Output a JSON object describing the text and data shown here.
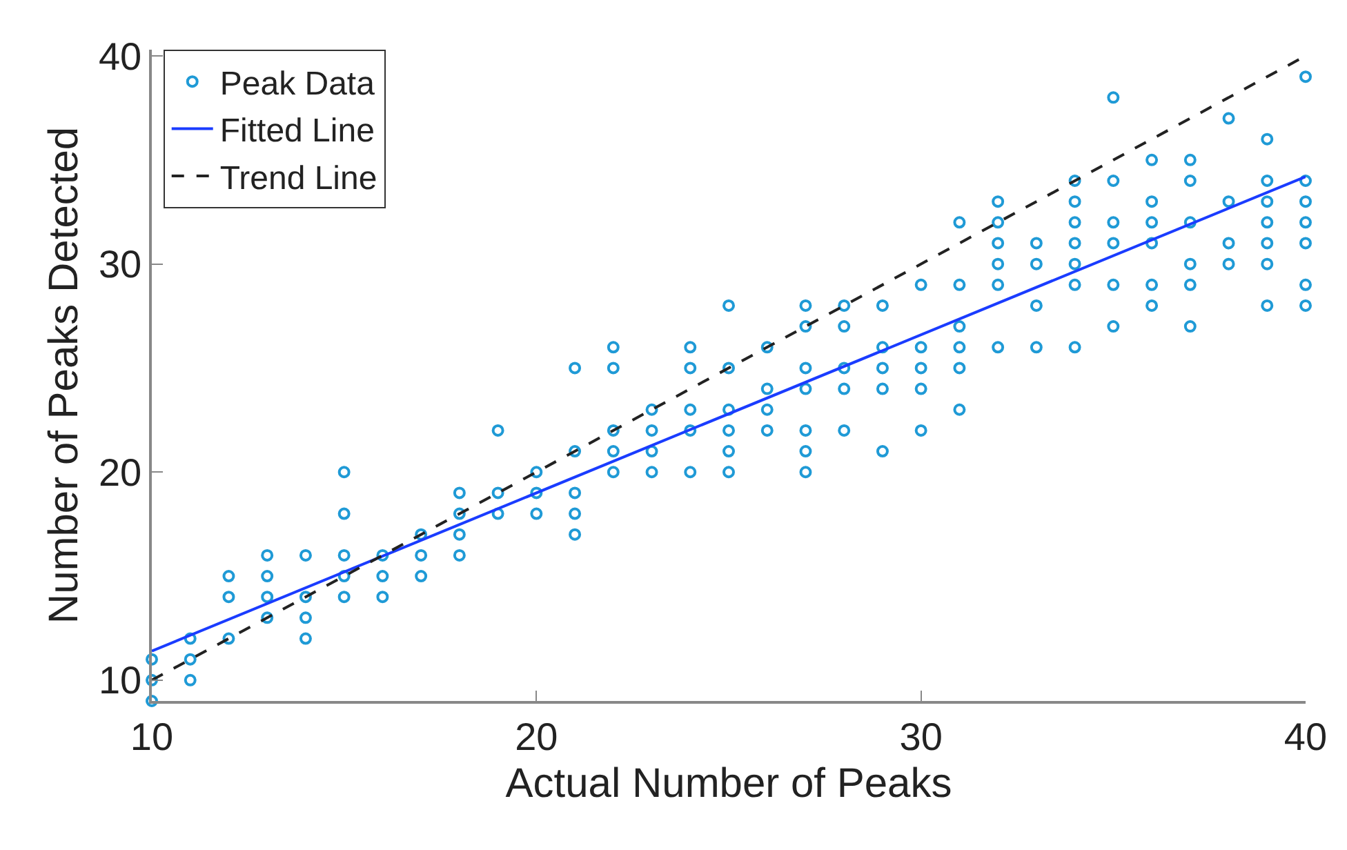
{
  "chart_data": {
    "type": "scatter",
    "xlabel": "Actual Number of Peaks",
    "ylabel": "Number of Peaks Detected",
    "xlim": [
      10,
      40
    ],
    "ylim": [
      9,
      40.3
    ],
    "xticks": [
      10,
      20,
      30,
      40
    ],
    "yticks": [
      10,
      20,
      30,
      40
    ],
    "grid": false,
    "legend": "top left",
    "series": [
      {
        "name": "Peak Data",
        "marker": "circle",
        "color": "#1f9ad6",
        "x": [
          10,
          10,
          10,
          11,
          11,
          11,
          12,
          12,
          12,
          13,
          13,
          13,
          13,
          14,
          14,
          14,
          14,
          15,
          15,
          15,
          15,
          15,
          16,
          16,
          16,
          17,
          17,
          17,
          18,
          18,
          18,
          18,
          19,
          19,
          19,
          20,
          20,
          20,
          21,
          21,
          21,
          21,
          21,
          22,
          22,
          22,
          22,
          22,
          23,
          23,
          23,
          23,
          24,
          24,
          24,
          24,
          24,
          25,
          25,
          25,
          25,
          25,
          25,
          26,
          26,
          26,
          26,
          27,
          27,
          27,
          27,
          27,
          27,
          27,
          28,
          28,
          28,
          28,
          28,
          29,
          29,
          29,
          29,
          29,
          30,
          30,
          30,
          30,
          30,
          31,
          31,
          31,
          31,
          31,
          31,
          32,
          32,
          32,
          32,
          32,
          32,
          33,
          33,
          33,
          33,
          34,
          34,
          34,
          34,
          34,
          34,
          34,
          35,
          35,
          35,
          35,
          35,
          35,
          36,
          36,
          36,
          36,
          36,
          36,
          37,
          37,
          37,
          37,
          37,
          37,
          38,
          38,
          38,
          38,
          39,
          39,
          39,
          39,
          39,
          39,
          39,
          40,
          40,
          40,
          40,
          40,
          40,
          40
        ],
        "values": [
          11,
          10,
          9,
          12,
          11,
          10,
          15,
          14,
          12,
          16,
          15,
          14,
          13,
          16,
          14,
          13,
          12,
          20,
          18,
          16,
          15,
          14,
          16,
          15,
          14,
          17,
          16,
          15,
          19,
          18,
          17,
          16,
          22,
          19,
          18,
          20,
          19,
          18,
          25,
          21,
          19,
          18,
          17,
          26,
          25,
          22,
          21,
          20,
          23,
          22,
          21,
          20,
          26,
          25,
          23,
          22,
          20,
          28,
          25,
          23,
          22,
          21,
          20,
          26,
          24,
          23,
          22,
          28,
          27,
          25,
          24,
          22,
          21,
          20,
          28,
          27,
          25,
          24,
          22,
          28,
          26,
          25,
          24,
          21,
          29,
          26,
          25,
          24,
          22,
          32,
          29,
          27,
          26,
          25,
          23,
          33,
          32,
          31,
          30,
          29,
          26,
          31,
          30,
          28,
          26,
          34,
          33,
          32,
          31,
          30,
          29,
          26,
          38,
          34,
          32,
          31,
          29,
          27,
          35,
          33,
          32,
          31,
          29,
          28,
          35,
          34,
          32,
          30,
          29,
          27,
          37,
          33,
          31,
          30,
          36,
          34,
          33,
          32,
          31,
          30,
          28,
          39,
          34,
          33,
          32,
          31,
          29,
          28
        ]
      },
      {
        "name": "Fitted Line",
        "type": "line",
        "marker": "none",
        "line_style": "solid",
        "color": "#1a3cff",
        "x": [
          10,
          40
        ],
        "values": [
          11.4,
          34.2
        ]
      },
      {
        "name": "Trend Line",
        "type": "line",
        "marker": "none",
        "line_style": "dashed",
        "color": "#222222",
        "x": [
          10,
          40
        ],
        "values": [
          10,
          40
        ]
      }
    ]
  }
}
